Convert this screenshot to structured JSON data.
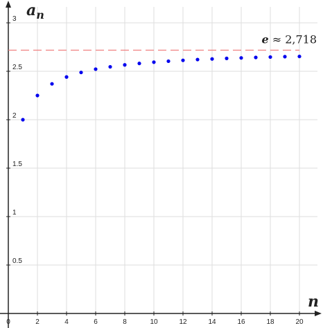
{
  "chart_data": {
    "type": "scatter",
    "x_axis": {
      "label_main": "n",
      "range": [
        0,
        20
      ],
      "ticks": [
        0,
        2,
        4,
        6,
        8,
        10,
        12,
        14,
        16,
        18,
        20
      ],
      "tick_labels": [
        "0",
        "2",
        "4",
        "6",
        "8",
        "10",
        "12",
        "14",
        "16",
        "18",
        "20"
      ]
    },
    "y_axis": {
      "label_main": "a",
      "label_sub": "n",
      "range": [
        0,
        3
      ],
      "ticks": [
        0.5,
        1,
        1.5,
        2,
        2.5,
        3
      ],
      "tick_labels": [
        "0.5",
        "1",
        "1.5",
        "2",
        "2.5",
        "3"
      ]
    },
    "grid": true,
    "series": [
      {
        "color": "#0000ee",
        "x": [
          1,
          2,
          3,
          4,
          5,
          6,
          7,
          8,
          9,
          10,
          11,
          12,
          13,
          14,
          15,
          16,
          17,
          18,
          19,
          20
        ],
        "y": [
          2.0,
          2.25,
          2.37,
          2.441,
          2.488,
          2.522,
          2.546,
          2.566,
          2.581,
          2.594,
          2.604,
          2.613,
          2.621,
          2.627,
          2.633,
          2.638,
          2.643,
          2.647,
          2.651,
          2.653
        ]
      }
    ],
    "reference_line": {
      "y": 2.718,
      "color": "#f08080",
      "style": "dashed",
      "label_var": "e",
      "label_rest": "≈ 2,718"
    }
  }
}
